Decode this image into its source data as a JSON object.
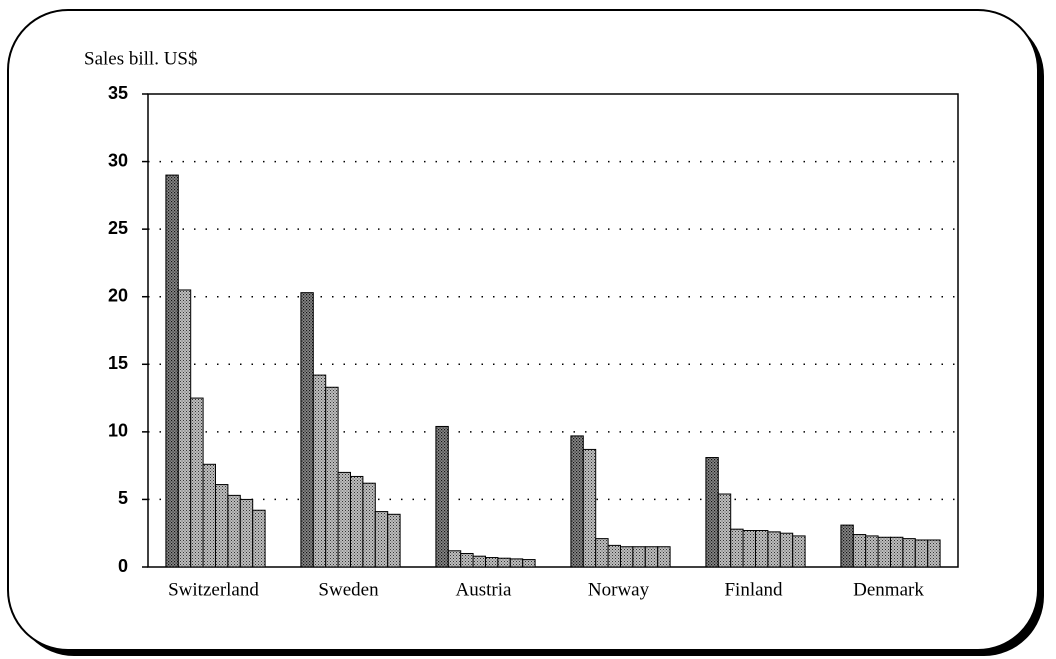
{
  "chart_data": {
    "type": "grouped-bar",
    "y_label": "Sales bill. US$",
    "categories": [
      "Switzerland",
      "Sweden",
      "Austria",
      "Norway",
      "Finland",
      "Denmark"
    ],
    "values": [
      [
        29,
        20.5,
        12.5,
        7.6,
        6.1,
        5.3,
        5.0,
        4.2
      ],
      [
        20.3,
        14.2,
        13.3,
        7.0,
        6.7,
        6.2,
        4.1,
        3.9
      ],
      [
        10.4,
        1.2,
        1.0,
        0.8,
        0.7,
        0.65,
        0.6,
        0.55
      ],
      [
        9.7,
        8.7,
        2.1,
        1.6,
        1.5,
        1.5,
        1.5,
        1.5
      ],
      [
        8.1,
        5.4,
        2.8,
        2.7,
        2.7,
        2.6,
        2.5,
        2.3
      ],
      [
        3.1,
        2.4,
        2.3,
        2.2,
        2.2,
        2.1,
        2.0,
        2.0
      ]
    ],
    "color": "#9a9a9a",
    "first_color": "#6e6e6e",
    "ylim": [
      0,
      35
    ],
    "yticks": [
      0,
      5,
      10,
      15,
      20,
      25,
      30,
      35
    ],
    "grid": true
  }
}
